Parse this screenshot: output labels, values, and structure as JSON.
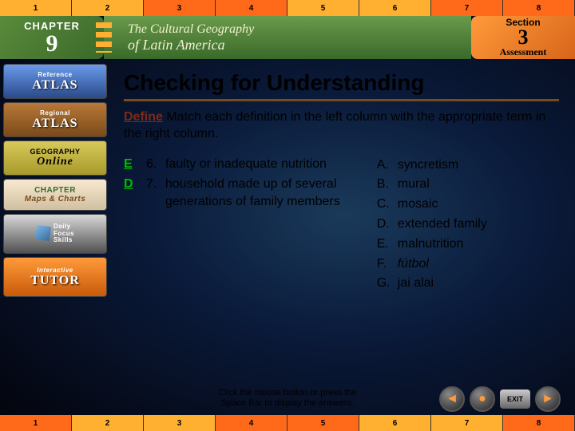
{
  "ruler": {
    "top_colors": [
      "#ffb030",
      "#ffb030",
      "#ff6a1a",
      "#ff6a1a",
      "#ffb030",
      "#ffb030",
      "#ff6a1a",
      "#ff6a1a"
    ],
    "bottom_colors": [
      "#ff6a1a",
      "#ffb030",
      "#ffb030",
      "#ff6a1a",
      "#ff6a1a",
      "#ffb030",
      "#ffb030",
      "#ff6a1a"
    ],
    "labels": [
      "1",
      "2",
      "3",
      "4",
      "5",
      "6",
      "7",
      "8"
    ]
  },
  "header": {
    "chapter_word": "CHAPTER",
    "chapter_number": "9",
    "title_line1": "The Cultural Geography",
    "title_line2": "of Latin America",
    "section_word": "Section",
    "section_number": "3",
    "section_sub": "Assessment"
  },
  "sidebar": {
    "items": [
      {
        "id": "ref-atlas",
        "top": "Reference",
        "big": "ATLAS"
      },
      {
        "id": "reg-atlas",
        "top": "Regional",
        "big": "ATLAS"
      },
      {
        "id": "geo-online",
        "top": "GEOGRAPHY",
        "big": "Online"
      },
      {
        "id": "chapter-maps",
        "top": "CHAPTER",
        "small": "Maps & Charts"
      },
      {
        "id": "dfs",
        "top": "Daily",
        "mid": "Focus",
        "bot": "Skills"
      },
      {
        "id": "tutor",
        "top": "Interactive",
        "big": "TUTOR"
      }
    ]
  },
  "content": {
    "title": "Checking for Understanding",
    "define_label": "Define",
    "instructions_tail": " Match each definition in the left column with the appropriate term in the right column.",
    "questions": [
      {
        "answer": "E",
        "num": "6.",
        "text": "faulty or inadequate nutrition"
      },
      {
        "answer": "D",
        "num": "7.",
        "text": "household made up of several generations of family members"
      }
    ],
    "options": [
      {
        "letter": "A.",
        "text": "syncretism",
        "italic": false
      },
      {
        "letter": "B.",
        "text": "mural",
        "italic": false
      },
      {
        "letter": "C.",
        "text": "mosaic",
        "italic": false
      },
      {
        "letter": "D.",
        "text": "extended family",
        "italic": false
      },
      {
        "letter": "E.",
        "text": "malnutrition",
        "italic": false
      },
      {
        "letter": "F.",
        "text": "fútbol",
        "italic": true
      },
      {
        "letter": "G.",
        "text": "jai alai",
        "italic": false
      }
    ]
  },
  "hint": {
    "line1": "Click the mouse button or press the",
    "line2": "Space Bar to display the answers."
  },
  "nav": {
    "back_glyph": "◄",
    "circle_glyph": "●",
    "exit_label": "EXIT",
    "fwd_glyph": "►"
  }
}
